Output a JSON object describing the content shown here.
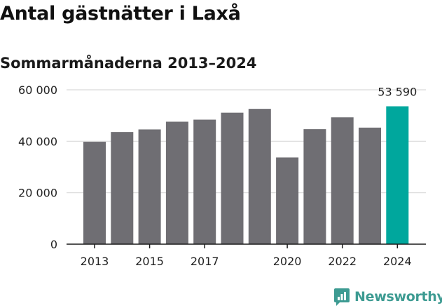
{
  "title": "Antal gästnätter i Laxå",
  "subtitle": "Sommarmånaderna 2013–2024",
  "brand": {
    "name": "Newsworthy",
    "icon": "newsworthy-chart-bubble-icon",
    "color": "#3d9b92"
  },
  "colors": {
    "bar": "#6f6e73",
    "highlight": "#00a79d",
    "grid": "#d9d9d9",
    "axis": "#1a1a1a"
  },
  "chart_data": {
    "type": "bar",
    "categories": [
      "2013",
      "2014",
      "2015",
      "2016",
      "2017",
      "2018",
      "2019",
      "2020",
      "2021",
      "2022",
      "2023",
      "2024"
    ],
    "values": [
      39800,
      43600,
      44600,
      47600,
      48400,
      51100,
      52600,
      33700,
      44700,
      49300,
      45300,
      53590
    ],
    "x_tick_labels": [
      "2013",
      "",
      "2015",
      "",
      "2017",
      "",
      "",
      "2020",
      "",
      "2022",
      "",
      "2024"
    ],
    "y_ticks": [
      0,
      20000,
      40000,
      60000
    ],
    "y_tick_labels": [
      "0",
      "20 000",
      "40 000",
      "60 000"
    ],
    "ylim": [
      0,
      60000
    ],
    "highlight_index": 11,
    "annotation": {
      "index": 11,
      "text": "53 590"
    },
    "grid": true,
    "legend": false
  }
}
